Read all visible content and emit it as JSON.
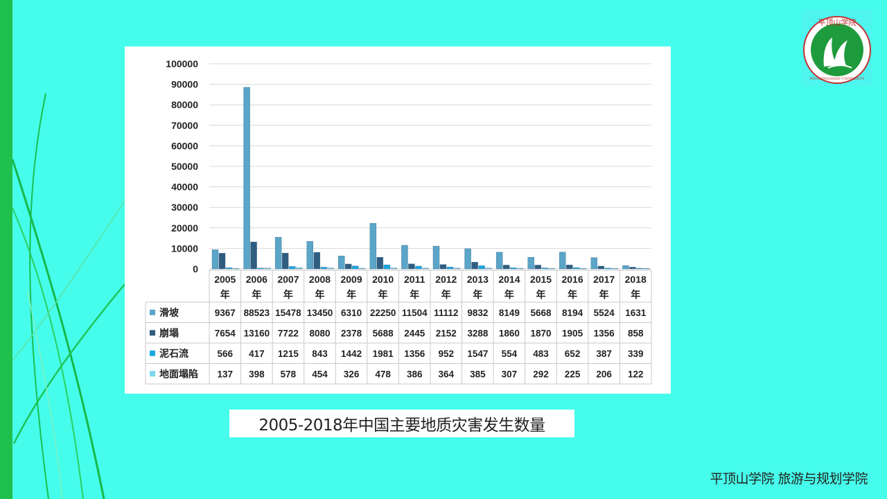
{
  "chart_data": {
    "type": "bar",
    "categories": [
      "2005年",
      "2006年",
      "2007年",
      "2008年",
      "2009年",
      "2010年",
      "2011年",
      "2012年",
      "2013年",
      "2014年",
      "2015年",
      "2016年",
      "2017年",
      "2018年"
    ],
    "series": [
      {
        "name": "滑坡",
        "color": "#5aa5c8",
        "values": [
          9367,
          88523,
          15478,
          13450,
          6310,
          22250,
          11504,
          11112,
          9832,
          8149,
          5668,
          8194,
          5524,
          1631
        ]
      },
      {
        "name": "崩塌",
        "color": "#2f5d80",
        "values": [
          7654,
          13160,
          7722,
          8080,
          2378,
          5688,
          2445,
          2152,
          3288,
          1860,
          1870,
          1905,
          1356,
          858
        ]
      },
      {
        "name": "泥石流",
        "color": "#1aa8e0",
        "values": [
          566,
          417,
          1215,
          843,
          1442,
          1981,
          1356,
          952,
          1547,
          554,
          483,
          652,
          387,
          339
        ]
      },
      {
        "name": "地面塌陷",
        "color": "#7fd6ea",
        "values": [
          137,
          398,
          578,
          454,
          326,
          478,
          386,
          364,
          385,
          307,
          292,
          225,
          206,
          122
        ]
      }
    ],
    "ylim": [
      0,
      100000
    ],
    "yticks": [
      0,
      10000,
      20000,
      30000,
      40000,
      50000,
      60000,
      70000,
      80000,
      90000,
      100000
    ],
    "grid": true,
    "legend": "data-table"
  },
  "caption": "2005-2018年中国主要地质灾害发生数量",
  "footer": "平顶山学院  旅游与规划学院",
  "logo": {
    "top_text": "平顶山学院",
    "bottom_text": "PINGDINGSHAN UNIVERSITY"
  }
}
